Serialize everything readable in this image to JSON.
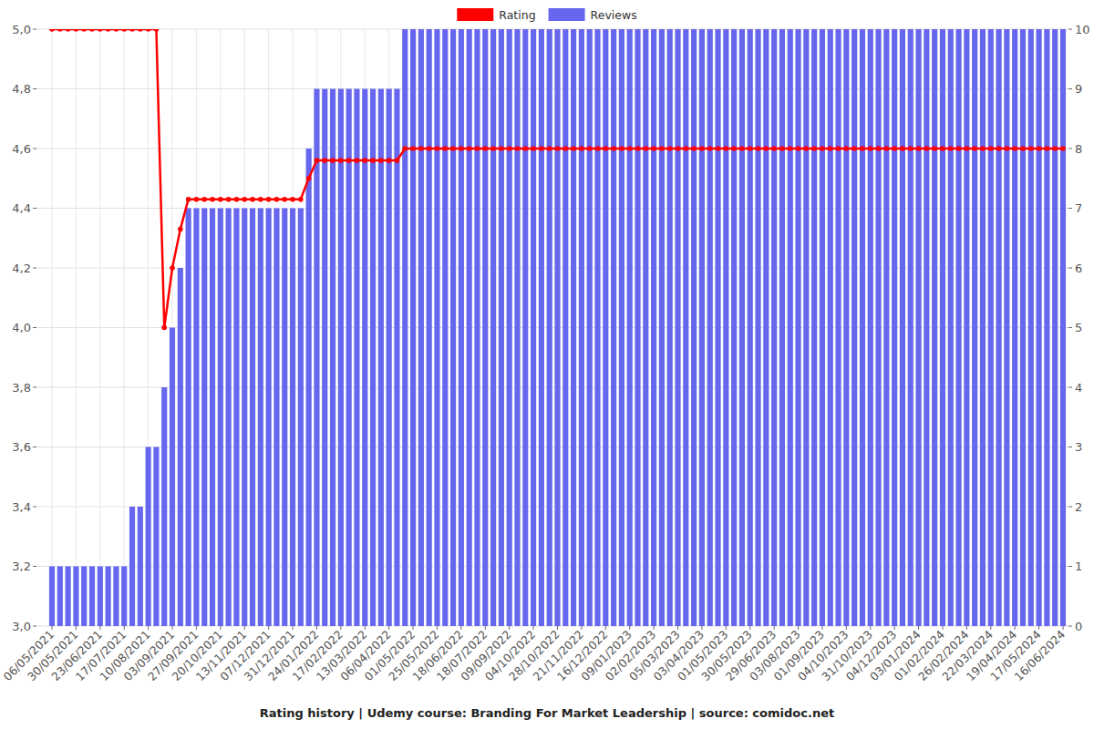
{
  "chart_data": {
    "type": "bar",
    "title": "Rating history | Udemy course: Branding For Market Leadership | source: comidoc.net",
    "categories": [
      "06/05/2021",
      null,
      null,
      "30/05/2021",
      null,
      null,
      "23/06/2021",
      null,
      null,
      "17/07/2021",
      null,
      null,
      "10/08/2021",
      null,
      null,
      "03/09/2021",
      null,
      null,
      "27/09/2021",
      null,
      null,
      "20/10/2021",
      null,
      null,
      "13/11/2021",
      null,
      null,
      "07/12/2021",
      null,
      null,
      "31/12/2021",
      null,
      null,
      "24/01/2022",
      null,
      null,
      "17/02/2022",
      null,
      null,
      "13/03/2022",
      null,
      null,
      "06/04/2022",
      null,
      null,
      "01/05/2022",
      null,
      null,
      "25/05/2022",
      null,
      null,
      "18/06/2022",
      null,
      null,
      "18/07/2022",
      null,
      null,
      "09/09/2022",
      null,
      null,
      "04/10/2022",
      null,
      null,
      "28/10/2022",
      null,
      null,
      "21/11/2022",
      null,
      null,
      "16/12/2022",
      null,
      null,
      "09/01/2023",
      null,
      null,
      "02/02/2023",
      null,
      null,
      "05/03/2023",
      null,
      null,
      "03/04/2023",
      null,
      null,
      "01/05/2023",
      null,
      null,
      "30/05/2023",
      null,
      null,
      "29/06/2023",
      null,
      null,
      "03/08/2023",
      null,
      null,
      "01/09/2023",
      null,
      null,
      "04/10/2023",
      null,
      null,
      "31/10/2023",
      null,
      null,
      "04/12/2023",
      null,
      null,
      "03/01/2024",
      null,
      null,
      "01/02/2024",
      null,
      null,
      "26/02/2024",
      null,
      null,
      "22/03/2024",
      null,
      null,
      "19/04/2024",
      null,
      null,
      "17/05/2024",
      null,
      null,
      "16/06/2024"
    ],
    "series": [
      {
        "name": "Rating",
        "type": "line",
        "color": "#ff0000",
        "marker": "circle",
        "axis": "y",
        "values": [
          5,
          5,
          5,
          5,
          5,
          5,
          5,
          5,
          5,
          5,
          5,
          5,
          5,
          5,
          4,
          4.2,
          4.33,
          4.43,
          4.43,
          4.43,
          4.43,
          4.43,
          4.43,
          4.43,
          4.43,
          4.43,
          4.43,
          4.43,
          4.43,
          4.43,
          4.43,
          4.43,
          4.5,
          4.56,
          4.56,
          4.56,
          4.56,
          4.56,
          4.56,
          4.56,
          4.56,
          4.56,
          4.56,
          4.56,
          4.6,
          4.6,
          4.6,
          4.6,
          4.6,
          4.6,
          4.6,
          4.6,
          4.6,
          4.6,
          4.6,
          4.6,
          4.6,
          4.6,
          4.6,
          4.6,
          4.6,
          4.6,
          4.6,
          4.6,
          4.6,
          4.6,
          4.6,
          4.6,
          4.6,
          4.6,
          4.6,
          4.6,
          4.6,
          4.6,
          4.6,
          4.6,
          4.6,
          4.6,
          4.6,
          4.6,
          4.6,
          4.6,
          4.6,
          4.6,
          4.6,
          4.6,
          4.6,
          4.6,
          4.6,
          4.6,
          4.6,
          4.6,
          4.6,
          4.6,
          4.6,
          4.6,
          4.6,
          4.6,
          4.6,
          4.6,
          4.6,
          4.6,
          4.6,
          4.6,
          4.6,
          4.6,
          4.6,
          4.6,
          4.6,
          4.6,
          4.6,
          4.6,
          4.6,
          4.6,
          4.6,
          4.6,
          4.6,
          4.6,
          4.6,
          4.6,
          4.6,
          4.6,
          4.6,
          4.6,
          4.6,
          4.6,
          4.6
        ]
      },
      {
        "name": "Reviews",
        "type": "bar",
        "color": "#6666ee",
        "axis": "y2",
        "values": [
          1,
          1,
          1,
          1,
          1,
          1,
          1,
          1,
          1,
          1,
          2,
          2,
          3,
          3,
          4,
          5,
          6,
          7,
          7,
          7,
          7,
          7,
          7,
          7,
          7,
          7,
          7,
          7,
          7,
          7,
          7,
          7,
          8,
          9,
          9,
          9,
          9,
          9,
          9,
          9,
          9,
          9,
          9,
          9,
          10,
          10,
          10,
          10,
          10,
          10,
          10,
          10,
          10,
          10,
          10,
          10,
          10,
          10,
          10,
          10,
          10,
          10,
          10,
          10,
          10,
          10,
          10,
          10,
          10,
          10,
          10,
          10,
          10,
          10,
          10,
          10,
          10,
          10,
          10,
          10,
          10,
          10,
          10,
          10,
          10,
          10,
          10,
          10,
          10,
          10,
          10,
          10,
          10,
          10,
          10,
          10,
          10,
          10,
          10,
          10,
          10,
          10,
          10,
          10,
          10,
          10,
          10,
          10,
          10,
          10,
          10,
          10,
          10,
          10,
          10,
          10,
          10,
          10,
          10,
          10,
          10,
          10,
          10,
          10,
          10,
          10,
          10
        ]
      }
    ],
    "ylim": [
      3.0,
      5.0
    ],
    "yticks": [
      {
        "value": 3.0,
        "label": "3,0"
      },
      {
        "value": 3.2,
        "label": "3,2"
      },
      {
        "value": 3.4,
        "label": "3,4"
      },
      {
        "value": 3.6,
        "label": "3,6"
      },
      {
        "value": 3.8,
        "label": "3,8"
      },
      {
        "value": 4.0,
        "label": "4,0"
      },
      {
        "value": 4.2,
        "label": "4,2"
      },
      {
        "value": 4.4,
        "label": "4,4"
      },
      {
        "value": 4.6,
        "label": "4,6"
      },
      {
        "value": 4.8,
        "label": "4,8"
      },
      {
        "value": 5.0,
        "label": "5,0"
      }
    ],
    "y2lim": [
      0,
      10
    ],
    "y2ticks": [
      0,
      1,
      2,
      3,
      4,
      5,
      6,
      7,
      8,
      9,
      10
    ],
    "grid": true,
    "legend": "top"
  }
}
